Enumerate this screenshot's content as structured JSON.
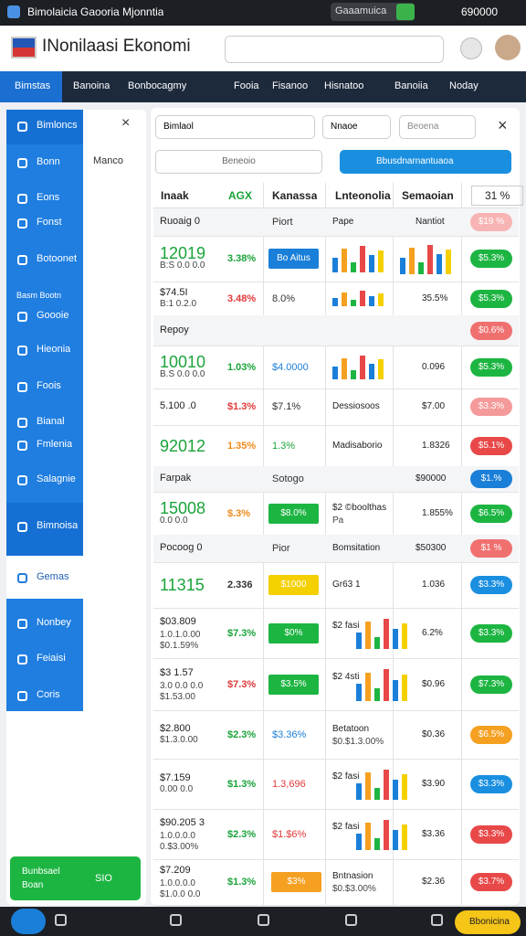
{
  "status_bar": {
    "title": "Bimolaicia Gaooria Mjonntia",
    "chip": "Gaaamuica",
    "value": "690000"
  },
  "header": {
    "title": "INonilaasi Ekonomi"
  },
  "tabs": [
    "Bimstas",
    "Banoina",
    "Bonbocagmy",
    "Fooia",
    "Fisanoo",
    "Hisnatoo",
    "Banoiia",
    "Noday"
  ],
  "sidebar": {
    "items": [
      "Bimloncs",
      "Bonn",
      "Eons",
      "Fonst",
      "Botoonet",
      "Basm Bootn",
      "Goooie",
      "Hieonia",
      "Foois",
      "Bianal",
      "Fmlenia",
      "Salagnie",
      "Bimnoisa",
      "Gemas",
      "Nonbey",
      "Feiaisi",
      "Coris"
    ],
    "panel_label": "Manco",
    "footer": {
      "title": "Bunbsael",
      "subtitle": "Boan",
      "value": "SIO"
    }
  },
  "filters": {
    "select_1": "Bimlaol",
    "select_2": "Nnaoe",
    "input": "Beoena",
    "select_3": "Beneoio",
    "button": "Bbusdnarnantuaoa"
  },
  "table": {
    "headers": [
      "Inaak",
      "AGX",
      "Kanassa",
      "Lnteonolia",
      "Semaoian",
      "31 %"
    ],
    "rows": [
      {
        "main": "Ruoaig 0",
        "c": "Piort",
        "d": "Pape",
        "e": "Nantiot",
        "badge": "$19 %",
        "badge_color": "#f8b4b4",
        "section": true
      },
      {
        "main": "12019",
        "main_color": "#1aa33a",
        "sub": [
          "B:S 0.0 0.0"
        ],
        "pct": "3.38%",
        "pct_color": "#1aa33a",
        "c": "Bo Aitus",
        "c_block": "#1a7fd8",
        "d_chart": true,
        "e_chart": true,
        "badge": "$5.3%",
        "badge_color": "#1db542"
      },
      {
        "main": "$74.5I",
        "sub": [
          "B:1 0.2.0"
        ],
        "pct": "3.48%",
        "pct_color": "#e03a3a",
        "c": "8.0%",
        "d_chart": true,
        "e": "35.5%",
        "badge": "$5.3%",
        "badge_color": "#1db542"
      },
      {
        "main": "Repoy",
        "badge": "$0.6%",
        "badge_color": "#f07070",
        "section": true
      },
      {
        "main": "10010",
        "main_color": "#1aa33a",
        "sub": [
          "B.S 0.0 0.0"
        ],
        "pct": "1.03%",
        "pct_color": "#1aa33a",
        "c": "$4.0000",
        "c_color": "#1a7fd8",
        "d_chart": true,
        "e": "0.096",
        "badge": "$5.3%",
        "badge_color": "#1db542"
      },
      {
        "main": "5.100 .0",
        "pct": "$1.3%",
        "pct_color": "#e03a3a",
        "c": "$7.1%",
        "d": "Dessiosoos",
        "e": "$7.00",
        "badge": "$3.3%",
        "badge_color": "#f49a9a"
      },
      {
        "main": "92012",
        "main_color": "#1aa33a",
        "pct": "1.35%",
        "pct_color": "#f08a1a",
        "c": "1.3%",
        "c_color": "#1aa33a",
        "d": "Madisaborio",
        "e": "1.8326",
        "badge": "$5.1%",
        "badge_color": "#e84848"
      },
      {
        "main": "Farpak",
        "c": "Sotogo",
        "e": "$90000",
        "badge": "$1.%",
        "badge_color": "#1a7fd8",
        "section": true
      },
      {
        "main": "15008",
        "main_color": "#1aa33a",
        "sub": [
          "0.0 0.0"
        ],
        "pct": "$.3%",
        "pct_color": "#f08a1a",
        "c": "$8.0%",
        "c_block": "#1db542",
        "d": "$2 ©boolthas",
        "d_sub": "Pa",
        "e": "1.855%",
        "badge": "$6.5%",
        "badge_color": "#1db542"
      },
      {
        "main": "Pocoog 0",
        "c": "Pior",
        "d": "Bomsitation",
        "e": "$50300",
        "badge": "$1 %",
        "badge_color": "#f07070",
        "section": true
      },
      {
        "main": "11315",
        "main_color": "#1aa33a",
        "pct": "2.336",
        "c": "$1000",
        "c_block": "#f5d000",
        "d": "Gr63 1",
        "e": "1.036",
        "badge": "$3.3%",
        "badge_color": "#1a8fe0"
      },
      {
        "main": "$03.809",
        "sub": [
          "1.0.1.0.00",
          "$0.1.59%"
        ],
        "pct": "$7.3%",
        "pct_color": "#1aa33a",
        "c": "$0%",
        "c_block": "#1db542",
        "d": "$2 fasi",
        "d_chart": true,
        "e": "6.2%",
        "badge": "$3.3%",
        "badge_color": "#1db542"
      },
      {
        "main": "$3 1.57",
        "sub": [
          "3.0 0.0 0.0",
          "$1.53.00"
        ],
        "pct": "$7.3%",
        "pct_color": "#e03a3a",
        "c": "$3.5%",
        "c_block": "#1db542",
        "d": "$2 4sti",
        "d_chart": true,
        "e": "$0.96",
        "badge": "$7.3%",
        "badge_color": "#1db542"
      },
      {
        "main": "$2.800",
        "sub": [
          "$1.3.0.00"
        ],
        "pct": "$2.3%",
        "pct_color": "#1aa33a",
        "c": "$3.36%",
        "c_color": "#1a7fd8",
        "d": "Betatoon",
        "d_sub": "$0.$1.3.00%",
        "e": "$0.36",
        "badge": "$6.5%",
        "badge_color": "#f5a020"
      },
      {
        "main": "$7.159",
        "sub": [
          "0.00 0.0"
        ],
        "pct": "$1.3%",
        "pct_color": "#1aa33a",
        "c": "1.3,696",
        "c_color": "#e03a3a",
        "d": "$2 fasi",
        "d_chart": true,
        "e": "$3.90",
        "badge": "$3.3%",
        "badge_color": "#1a8fe0"
      },
      {
        "main": "$90.205 3",
        "sub": [
          "1.0.0.0.0",
          "0.$3.00%"
        ],
        "pct": "$2.3%",
        "pct_color": "#1aa33a",
        "c": "$1.$6%",
        "c_color": "#e03a3a",
        "d": "$2 fasi",
        "d_chart": true,
        "e": "$3.36",
        "badge": "$3.3%",
        "badge_color": "#e84848"
      },
      {
        "main": "$7.209",
        "sub": [
          "1.0.0.0.0",
          "$1.0.0 0.0"
        ],
        "pct": "$1.3%",
        "pct_color": "#1aa33a",
        "c": "$3%",
        "c_block": "#f5a020",
        "d": "Bntnasion",
        "d_sub": "$0.$3.00%",
        "e": "$2.36",
        "badge": "$3.7%",
        "badge_color": "#e84848"
      }
    ]
  },
  "bottom_bar": {
    "button": "Bbonicina"
  }
}
